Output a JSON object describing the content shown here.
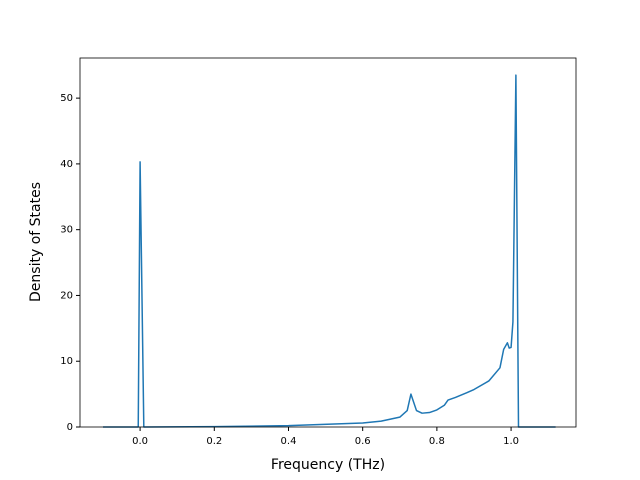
{
  "chart_data": {
    "type": "line",
    "xlabel": "Frequency (THz)",
    "ylabel": "Density of States",
    "xlim": [
      -0.162,
      1.175
    ],
    "ylim": [
      0,
      56.1
    ],
    "xticks": [
      {
        "value": 0,
        "label": "0.0"
      },
      {
        "value": 0.2,
        "label": "0.2"
      },
      {
        "value": 0.4,
        "label": "0.4"
      },
      {
        "value": 0.6,
        "label": "0.6"
      },
      {
        "value": 0.8,
        "label": "0.8"
      },
      {
        "value": 1,
        "label": "1.0"
      }
    ],
    "yticks": [
      0,
      10,
      20,
      30,
      40,
      50
    ],
    "series": [
      {
        "color": "#1f77b4",
        "x": [
          -0.1,
          -0.005,
          0.0,
          0.01,
          0.2,
          0.4,
          0.6,
          0.65,
          0.7,
          0.72,
          0.73,
          0.745,
          0.76,
          0.78,
          0.8,
          0.82,
          0.83,
          0.85,
          0.88,
          0.9,
          0.94,
          0.97,
          0.98,
          0.99,
          0.995,
          1.0,
          1.005,
          1.013,
          1.02,
          1.12
        ],
        "values": [
          0,
          0,
          40.3,
          0,
          0.05,
          0.2,
          0.6,
          0.9,
          1.5,
          2.5,
          5.0,
          2.5,
          2.1,
          2.2,
          2.6,
          3.3,
          4.1,
          4.5,
          5.2,
          5.7,
          7.0,
          9.0,
          11.8,
          12.8,
          12.0,
          12.1,
          16,
          53.5,
          0,
          0
        ]
      }
    ]
  }
}
